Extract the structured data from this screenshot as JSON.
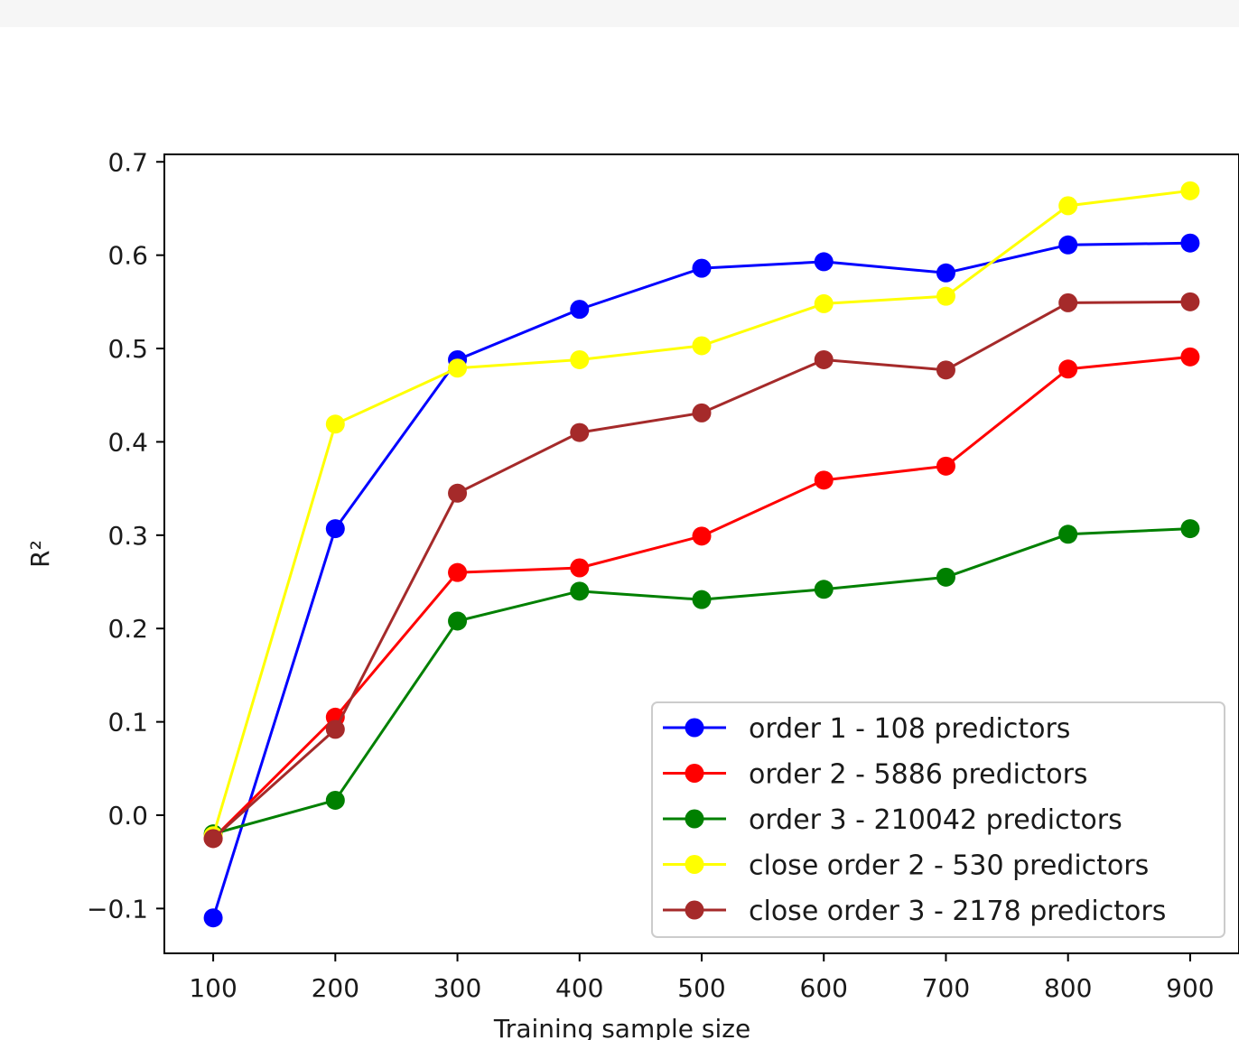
{
  "chart_data": {
    "type": "line",
    "title": "",
    "xlabel": "Training sample size",
    "ylabel": "R²",
    "x": [
      100,
      200,
      300,
      400,
      500,
      600,
      700,
      800,
      900
    ],
    "xlim": [
      60,
      940
    ],
    "ylim": [
      -0.148,
      0.708
    ],
    "xticks": [
      100,
      200,
      300,
      400,
      500,
      600,
      700,
      800,
      900
    ],
    "yticks": [
      -0.1,
      0.0,
      0.1,
      0.2,
      0.3,
      0.4,
      0.5,
      0.6,
      0.7
    ],
    "ytick_labels": [
      "−0.1",
      "0.0",
      "0.1",
      "0.2",
      "0.3",
      "0.4",
      "0.5",
      "0.6",
      "0.7"
    ],
    "grid": false,
    "legend_position": "lower-right",
    "series": [
      {
        "name": "order 1 - 108 predictors",
        "color": "#0000ff",
        "values": [
          -0.11,
          0.307,
          0.488,
          0.542,
          0.586,
          0.593,
          0.581,
          0.611,
          0.613
        ]
      },
      {
        "name": "order 2 - 5886 predictors",
        "color": "#ff0000",
        "values": [
          -0.025,
          0.105,
          0.26,
          0.265,
          0.299,
          0.359,
          0.374,
          0.478,
          0.491
        ]
      },
      {
        "name": "order 3 - 210042 predictors",
        "color": "#008000",
        "values": [
          -0.02,
          0.016,
          0.208,
          0.24,
          0.231,
          0.242,
          0.255,
          0.301,
          0.307
        ]
      },
      {
        "name": "close order 2 - 530 predictors",
        "color": "#ffff00",
        "values": [
          -0.022,
          0.419,
          0.479,
          0.488,
          0.503,
          0.548,
          0.556,
          0.653,
          0.669
        ]
      },
      {
        "name": "close order 3 - 2178 predictors",
        "color": "#a52a2a",
        "values": [
          -0.025,
          0.092,
          0.345,
          0.41,
          0.431,
          0.488,
          0.477,
          0.549,
          0.55
        ]
      }
    ]
  }
}
